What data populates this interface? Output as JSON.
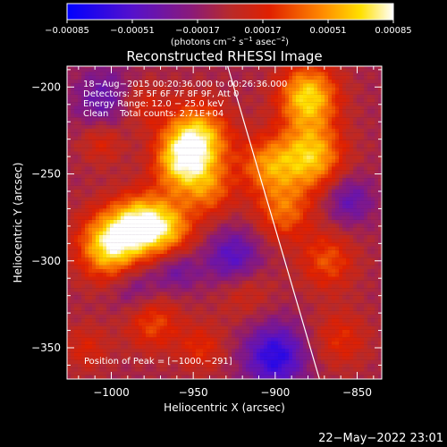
{
  "chart_data": {
    "type": "heatmap",
    "title": "Reconstructed RHESSI Image",
    "xlabel": "Heliocentric X (arcsec)",
    "ylabel": "Heliocentric Y (arcsec)",
    "xlim": [
      -1027,
      -835
    ],
    "ylim": [
      -368,
      -188
    ],
    "x_ticks": [
      -1000,
      -950,
      -900,
      -850
    ],
    "y_ticks": [
      -350,
      -300,
      -250,
      -200
    ],
    "x_tick_labels": [
      "−1000",
      "−950",
      "−900",
      "−850"
    ],
    "y_tick_labels": [
      "−350",
      "−300",
      "−250",
      "−200"
    ],
    "colorbar": {
      "range": [
        -0.00085,
        0.00085
      ],
      "ticks": [
        -0.00085,
        -0.00051,
        -0.00017,
        0.00017,
        0.00051,
        0.00085
      ],
      "tick_labels": [
        "−0.00085",
        "−0.00051",
        "−0.00017",
        "0.00017",
        "0.00051",
        "0.00085"
      ],
      "unit_base": "(photons cm",
      "unit_sup1": "−2",
      "unit_mid": " s",
      "unit_sup2": "−1",
      "unit_mid2": " asec",
      "unit_sup3": "−2",
      "unit_end": ")"
    },
    "annotations": [
      "18−Aug−2015 00:20:36.000 to 00:26:36.000",
      "Detectors: 3F 5F 6F 7F 8F 9F, Att 0",
      "Energy Range: 12.0 − 25.0 keV",
      "Clean    Total counts: 2.71E+04"
    ],
    "peak_label": "Position of Peak = [−1000,−291]",
    "peak": [
      -1000,
      -291
    ],
    "limb_line": [
      [
        -929,
        -188
      ],
      [
        -873,
        -368
      ]
    ],
    "sources": [
      {
        "x": -1000,
        "y": -291,
        "value": 0.00085,
        "width": 14
      },
      {
        "x": -982,
        "y": -278,
        "value": 0.00065,
        "width": 12
      },
      {
        "x": -965,
        "y": -282,
        "value": 0.00055,
        "width": 12
      },
      {
        "x": -948,
        "y": -230,
        "value": 0.0008,
        "width": 14
      },
      {
        "x": -958,
        "y": -245,
        "value": 0.00055,
        "width": 12
      },
      {
        "x": -940,
        "y": -260,
        "value": 0.0004,
        "width": 11
      },
      {
        "x": -880,
        "y": -205,
        "value": 0.00075,
        "width": 13
      },
      {
        "x": -878,
        "y": -240,
        "value": 0.0007,
        "width": 14
      },
      {
        "x": -905,
        "y": -245,
        "value": 0.0005,
        "width": 12
      },
      {
        "x": -895,
        "y": -272,
        "value": 0.00045,
        "width": 12
      },
      {
        "x": -868,
        "y": -300,
        "value": 0.0004,
        "width": 12
      },
      {
        "x": -985,
        "y": -210,
        "value": 0.0004,
        "width": 11
      },
      {
        "x": -1005,
        "y": -230,
        "value": 0.00035,
        "width": 10
      },
      {
        "x": -975,
        "y": -335,
        "value": 0.0004,
        "width": 12
      },
      {
        "x": -920,
        "y": -315,
        "value": 0.0003,
        "width": 12
      },
      {
        "x": -945,
        "y": -350,
        "value": 0.0003,
        "width": 10
      },
      {
        "x": -860,
        "y": -345,
        "value": 0.0003,
        "width": 12
      },
      {
        "x": -1015,
        "y": -350,
        "value": 0.00025,
        "width": 10
      }
    ],
    "negatives": [
      {
        "x": -1000,
        "y": -210,
        "value": -0.00045,
        "width": 14
      },
      {
        "x": -925,
        "y": -300,
        "value": -0.0005,
        "width": 12
      },
      {
        "x": -900,
        "y": -355,
        "value": -0.0006,
        "width": 13
      },
      {
        "x": -985,
        "y": -315,
        "value": -0.0003,
        "width": 11
      },
      {
        "x": -855,
        "y": -265,
        "value": -0.00035,
        "width": 10
      },
      {
        "x": -960,
        "y": -305,
        "value": -0.0003,
        "width": 9
      }
    ]
  },
  "footer": {
    "timestamp": "22−May−2022 23:01"
  }
}
